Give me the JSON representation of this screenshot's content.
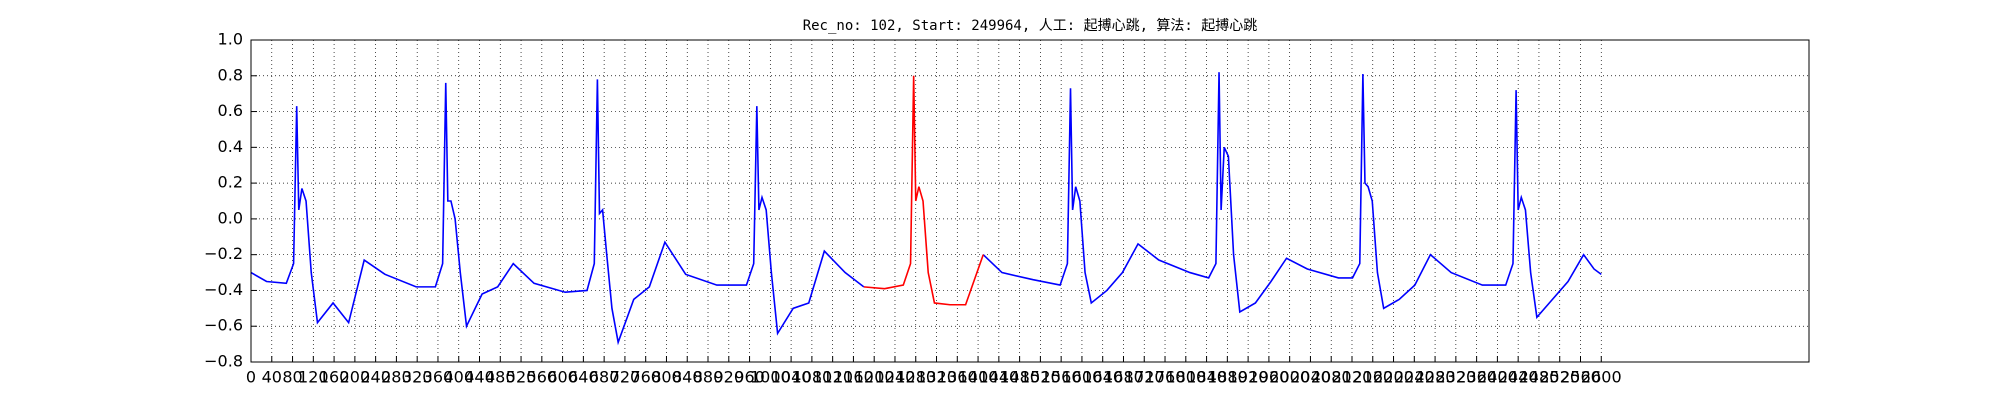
{
  "chart_data": {
    "type": "line",
    "title": "Rec_no: 102, Start: 249964, 人工: 起搏心跳, 算法: 起搏心跳",
    "x": [
      0,
      30,
      68,
      82,
      88,
      92,
      98,
      106,
      116,
      128,
      158,
      188,
      218,
      258,
      318,
      355,
      369,
      375,
      379,
      385,
      393,
      403,
      415,
      445,
      475,
      505,
      545,
      605,
      647,
      661,
      667,
      671,
      677,
      685,
      695,
      707,
      737,
      767,
      797,
      837,
      897,
      954,
      968,
      974,
      978,
      984,
      992,
      1002,
      1014,
      1044,
      1074,
      1104,
      1144,
      1180,
      1220,
      1256,
      1270,
      1276,
      1280,
      1286,
      1294,
      1304,
      1316,
      1346,
      1376,
      1410,
      1446,
      1506,
      1558,
      1572,
      1578,
      1582,
      1588,
      1596,
      1606,
      1618,
      1648,
      1678,
      1708,
      1748,
      1808,
      1844,
      1858,
      1864,
      1868,
      1874,
      1882,
      1892,
      1904,
      1934,
      1964,
      1994,
      2034,
      2094,
      2121,
      2135,
      2141,
      2145,
      2151,
      2159,
      2169,
      2181,
      2211,
      2241,
      2271,
      2311,
      2371,
      2416,
      2430,
      2436,
      2440,
      2446,
      2454,
      2464,
      2476,
      2506,
      2536,
      2566,
      2586,
      2600
    ],
    "series": [
      {
        "color": "#0000ff",
        "values": [
          -0.3,
          -0.35,
          -0.36,
          -0.25,
          0.63,
          0.05,
          0.17,
          0.1,
          -0.3,
          -0.58,
          -0.47,
          -0.58,
          -0.23,
          -0.31,
          -0.38,
          -0.38,
          -0.25,
          0.76,
          0.1,
          0.1,
          0.0,
          -0.3,
          -0.6,
          -0.42,
          -0.38,
          -0.25,
          -0.36,
          -0.41,
          -0.4,
          -0.25,
          0.78,
          0.03,
          0.05,
          -0.2,
          -0.5,
          -0.69,
          -0.45,
          -0.38,
          -0.13,
          -0.31,
          -0.37,
          -0.37,
          -0.25,
          0.63,
          0.05,
          0.12,
          0.05,
          -0.3,
          -0.64,
          -0.5,
          -0.47,
          -0.18,
          -0.3,
          -0.38,
          null,
          null,
          null,
          null,
          null,
          null,
          null,
          null,
          null,
          null,
          null,
          -0.2,
          -0.3,
          -0.34,
          -0.37,
          -0.25,
          0.73,
          0.05,
          0.18,
          0.1,
          -0.3,
          -0.47,
          -0.4,
          -0.3,
          -0.14,
          -0.23,
          -0.3,
          -0.33,
          -0.25,
          0.82,
          0.05,
          0.4,
          0.35,
          -0.2,
          -0.52,
          -0.47,
          -0.35,
          -0.22,
          -0.28,
          -0.33,
          -0.33,
          -0.25,
          0.81,
          0.2,
          0.18,
          0.1,
          -0.3,
          -0.5,
          -0.45,
          -0.37,
          -0.2,
          -0.3,
          -0.37,
          -0.37,
          -0.25,
          0.72,
          0.05,
          0.12,
          0.05,
          -0.3,
          -0.55,
          -0.45,
          -0.35,
          -0.2,
          -0.28,
          -0.31
        ]
      },
      {
        "color": "#ff0000",
        "values": [
          null,
          null,
          null,
          null,
          null,
          null,
          null,
          null,
          null,
          null,
          null,
          null,
          null,
          null,
          null,
          null,
          null,
          null,
          null,
          null,
          null,
          null,
          null,
          null,
          null,
          null,
          null,
          null,
          null,
          null,
          null,
          null,
          null,
          null,
          null,
          null,
          null,
          null,
          null,
          null,
          null,
          null,
          null,
          null,
          null,
          null,
          null,
          null,
          null,
          null,
          null,
          null,
          null,
          -0.38,
          -0.39,
          -0.37,
          -0.25,
          0.8,
          0.1,
          0.18,
          0.1,
          -0.3,
          -0.47,
          -0.48,
          -0.48,
          -0.2,
          null,
          null,
          null,
          null,
          null,
          null,
          null,
          null,
          null,
          null,
          null,
          null,
          null,
          null,
          null,
          null,
          null,
          null,
          null,
          null,
          null,
          null,
          null,
          null,
          null,
          null,
          null,
          null,
          null,
          null,
          null,
          null,
          null,
          null,
          null,
          null,
          null,
          null,
          null,
          null,
          null,
          null,
          null,
          null,
          null,
          null,
          null,
          null,
          null,
          null,
          null,
          null,
          null,
          null
        ]
      }
    ],
    "xlim": [
      0,
      3000
    ],
    "xticks": [
      0,
      40,
      80,
      120,
      160,
      200,
      240,
      280,
      320,
      360,
      400,
      440,
      480,
      520,
      560,
      600,
      640,
      680,
      720,
      760,
      800,
      840,
      880,
      920,
      960,
      1000,
      1040,
      1080,
      1120,
      1160,
      1200,
      1240,
      1280,
      1320,
      1360,
      1400,
      1440,
      1480,
      1520,
      1560,
      1600,
      1640,
      1680,
      1720,
      1760,
      1800,
      1840,
      1880,
      1920,
      1960,
      2000,
      2040,
      2080,
      2120,
      2160,
      2200,
      2240,
      2280,
      2320,
      2360,
      2400,
      2440,
      2480,
      2520,
      2560,
      2600
    ],
    "ylim": [
      -0.8,
      1.0
    ],
    "yticks": [
      {
        "value": -0.8,
        "label": "−0.8"
      },
      {
        "value": -0.6,
        "label": "−0.6"
      },
      {
        "value": -0.4,
        "label": "−0.4"
      },
      {
        "value": -0.2,
        "label": "−0.2"
      },
      {
        "value": 0,
        "label": "0.0"
      },
      {
        "value": 0.2,
        "label": "0.2"
      },
      {
        "value": 0.4,
        "label": "0.4"
      },
      {
        "value": 0.6,
        "label": "0.6"
      },
      {
        "value": 0.8,
        "label": "0.8"
      },
      {
        "value": 1.0,
        "label": "1.0"
      }
    ],
    "grid": true
  }
}
